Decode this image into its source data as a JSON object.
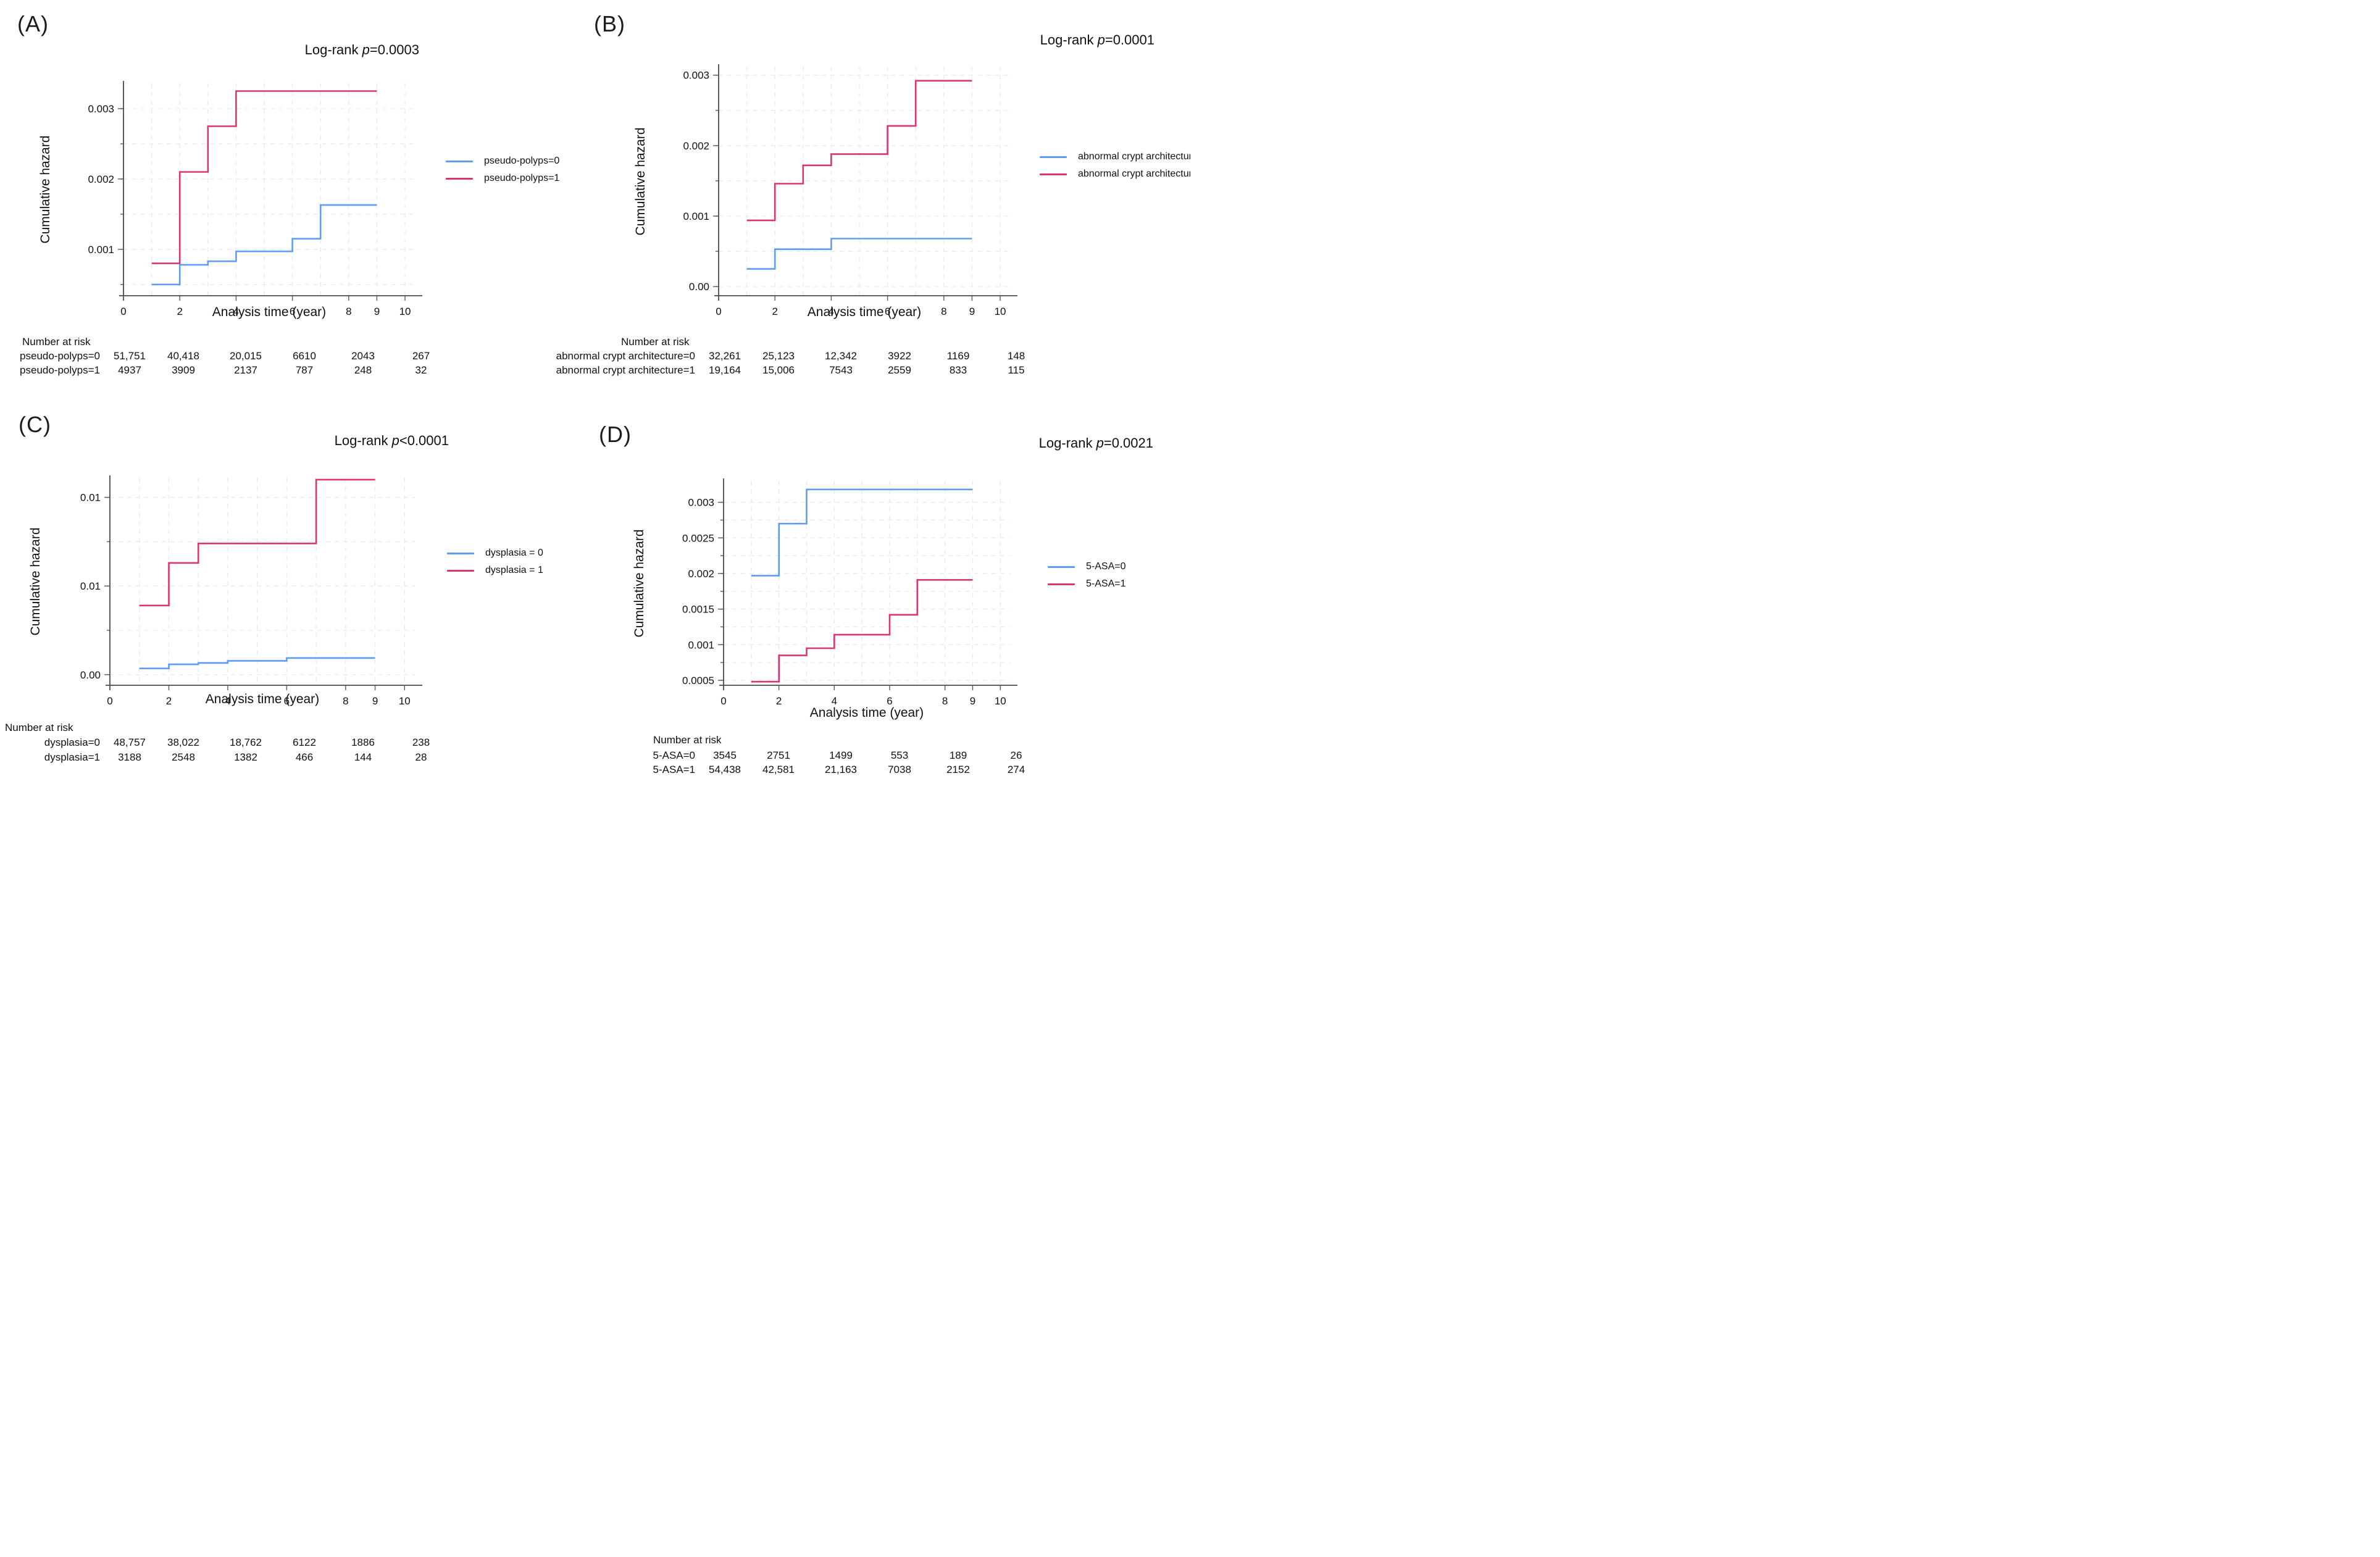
{
  "colors": {
    "blue": "#5f9df3",
    "red": "#dd3370",
    "grid": "#e9e9e9",
    "axis": "#4a4a4a",
    "text": "#101010"
  },
  "chart_data": [
    {
      "type": "line",
      "panel_letter": "(A)",
      "title": {
        "prefix": "Log-rank ",
        "p_symbol": "p",
        "comparison": "=0.0003"
      },
      "xlabel": "Analysis time (year)",
      "ylabel": "Cumulative hazard",
      "xlim": [
        0,
        10.35
      ],
      "ylim": [
        0.00034,
        0.00336
      ],
      "xticks": [
        {
          "v": 0,
          "label": "0"
        },
        {
          "v": 2,
          "label": "2"
        },
        {
          "v": 4,
          "label": "4"
        },
        {
          "v": 6,
          "label": "6"
        },
        {
          "v": 8,
          "label": "8"
        },
        {
          "v": 9,
          "label": "9"
        },
        {
          "v": 10,
          "label": "10"
        }
      ],
      "xgrid": [
        1,
        2,
        3,
        4,
        5,
        6,
        7,
        8,
        9,
        10
      ],
      "yticks": [
        {
          "v": 0.001,
          "label": "0.001"
        },
        {
          "v": 0.002,
          "label": "0.002"
        },
        {
          "v": 0.003,
          "label": "0.003"
        }
      ],
      "ygrid": [
        0.0005,
        0.001,
        0.0015,
        0.002,
        0.0025,
        0.003
      ],
      "series": [
        {
          "name": "pseudo-polyps=0",
          "color_key": "blue",
          "steps": [
            [
              1,
              0.0005
            ],
            [
              2,
              0.00078
            ],
            [
              3,
              0.00083
            ],
            [
              4,
              0.00097
            ],
            [
              6,
              0.00115
            ],
            [
              7,
              0.00163
            ]
          ],
          "end_x": 9
        },
        {
          "name": "pseudo-polyps=1",
          "color_key": "red",
          "steps": [
            [
              1,
              0.0008
            ],
            [
              2,
              0.0021
            ],
            [
              3,
              0.00275
            ],
            [
              4,
              0.00325
            ]
          ],
          "end_x": 9
        }
      ],
      "legend_position": "right",
      "risk_table": {
        "header": "Number at risk",
        "rows": [
          {
            "label": "pseudo-polyps=0",
            "values": [
              "51,751",
              "40,418",
              "20,015",
              "6610",
              "2043",
              "267"
            ]
          },
          {
            "label": "pseudo-polyps=1",
            "values": [
              "4937",
              "3909",
              "2137",
              "787",
              "248",
              "32"
            ]
          }
        ]
      }
    },
    {
      "type": "line",
      "panel_letter": "(B)",
      "title": {
        "prefix": "Log-rank ",
        "p_symbol": "p",
        "comparison": "=0.0001"
      },
      "xlabel": "Analysis time (year)",
      "ylabel": "Cumulative hazard",
      "xlim": [
        0,
        10.35
      ],
      "ylim": [
        -0.00013,
        0.00312
      ],
      "xticks": [
        {
          "v": 0,
          "label": "0"
        },
        {
          "v": 2,
          "label": "2"
        },
        {
          "v": 4,
          "label": "4"
        },
        {
          "v": 6,
          "label": "6"
        },
        {
          "v": 8,
          "label": "8"
        },
        {
          "v": 9,
          "label": "9"
        },
        {
          "v": 10,
          "label": "10"
        }
      ],
      "xgrid": [
        1,
        2,
        3,
        4,
        5,
        6,
        7,
        8,
        9,
        10
      ],
      "yticks": [
        {
          "v": 0,
          "label": "0.00"
        },
        {
          "v": 0.001,
          "label": "0.001"
        },
        {
          "v": 0.002,
          "label": "0.002"
        },
        {
          "v": 0.003,
          "label": "0.003"
        }
      ],
      "ygrid": [
        0,
        0.0005,
        0.001,
        0.0015,
        0.002,
        0.0025,
        0.003
      ],
      "series": [
        {
          "name": "abnormal crypt architecture=0",
          "color_key": "blue",
          "steps": [
            [
              1,
              0.00025
            ],
            [
              2,
              0.00053
            ],
            [
              4,
              0.00068
            ]
          ],
          "end_x": 9
        },
        {
          "name": "abnormal crypt architecture=1",
          "color_key": "red",
          "steps": [
            [
              1,
              0.00094
            ],
            [
              2,
              0.00146
            ],
            [
              3,
              0.00172
            ],
            [
              4,
              0.00188
            ],
            [
              6,
              0.00228
            ],
            [
              7,
              0.00292
            ]
          ],
          "end_x": 9
        }
      ],
      "legend_position": "right",
      "risk_table": {
        "header": "Number at risk",
        "rows": [
          {
            "label": "abnormal crypt architecture=0",
            "values": [
              "32,261",
              "25,123",
              "12,342",
              "3922",
              "1169",
              "148"
            ]
          },
          {
            "label": "abnormal crypt architecture=1",
            "values": [
              "19,164",
              "15,006",
              "7543",
              "2559",
              "833",
              "115"
            ]
          }
        ]
      }
    },
    {
      "type": "line",
      "panel_letter": "(C)",
      "title": {
        "prefix": "Log-rank ",
        "p_symbol": "p",
        "comparison": "<0.0001"
      },
      "xlabel": "Analysis time (year)",
      "ylabel": "Cumulative hazard",
      "xlim": [
        0,
        10.35
      ],
      "ylim": [
        -0.0006,
        0.0111
      ],
      "xticks": [
        {
          "v": 0,
          "label": "0"
        },
        {
          "v": 2,
          "label": "2"
        },
        {
          "v": 4,
          "label": "4"
        },
        {
          "v": 6,
          "label": "6"
        },
        {
          "v": 8,
          "label": "8"
        },
        {
          "v": 9,
          "label": "9"
        },
        {
          "v": 10,
          "label": "10"
        }
      ],
      "xgrid": [
        1,
        2,
        3,
        4,
        5,
        6,
        7,
        8,
        9,
        10
      ],
      "yticks": [
        {
          "v": 0,
          "label": "0.00"
        },
        {
          "v": 0.005,
          "label": "0.01"
        },
        {
          "v": 0.01,
          "label": "0.01"
        }
      ],
      "ygrid": [
        0,
        0.0025,
        0.005,
        0.0075,
        0.01
      ],
      "series": [
        {
          "name": "dysplasia = 0",
          "color_key": "blue",
          "steps": [
            [
              1,
              0.00035
            ],
            [
              2,
              0.00058
            ],
            [
              3,
              0.00066
            ],
            [
              4,
              0.00078
            ],
            [
              6,
              0.00094
            ]
          ],
          "end_x": 9
        },
        {
          "name": "dysplasia = 1",
          "color_key": "red",
          "steps": [
            [
              1,
              0.0039
            ],
            [
              2,
              0.0063
            ],
            [
              3,
              0.0074
            ],
            [
              7,
              0.011
            ]
          ],
          "end_x": 9
        }
      ],
      "legend_position": "right",
      "risk_table": {
        "header": "Number at risk",
        "rows": [
          {
            "label": "dysplasia=0",
            "values": [
              "48,757",
              "38,022",
              "18,762",
              "6122",
              "1886",
              "238"
            ]
          },
          {
            "label": "dysplasia=1",
            "values": [
              "3188",
              "2548",
              "1382",
              "466",
              "144",
              "28"
            ]
          }
        ]
      }
    },
    {
      "type": "line",
      "panel_letter": "(D)",
      "title": {
        "prefix": "Log-rank ",
        "p_symbol": "p",
        "comparison": "=0.0021"
      },
      "xlabel": "Analysis time (year)",
      "ylabel": "Cumulative hazard",
      "xlim": [
        0,
        10.35
      ],
      "ylim": [
        0.00043,
        0.0033
      ],
      "xticks": [
        {
          "v": 0,
          "label": "0"
        },
        {
          "v": 2,
          "label": "2"
        },
        {
          "v": 4,
          "label": "4"
        },
        {
          "v": 6,
          "label": "6"
        },
        {
          "v": 8,
          "label": "8"
        },
        {
          "v": 9,
          "label": "9"
        },
        {
          "v": 10,
          "label": "10"
        }
      ],
      "xgrid": [
        1,
        2,
        3,
        4,
        5,
        6,
        7,
        8,
        9,
        10
      ],
      "yticks": [
        {
          "v": 0.0005,
          "label": "0.0005"
        },
        {
          "v": 0.001,
          "label": "0.001"
        },
        {
          "v": 0.0015,
          "label": "0.0015"
        },
        {
          "v": 0.002,
          "label": "0.002"
        },
        {
          "v": 0.0025,
          "label": "0.0025"
        },
        {
          "v": 0.003,
          "label": "0.003"
        }
      ],
      "ygrid": [
        0.0005,
        0.00075,
        0.001,
        0.00125,
        0.0015,
        0.00175,
        0.002,
        0.00225,
        0.0025,
        0.00275,
        0.003
      ],
      "series": [
        {
          "name": "5-ASA=0",
          "color_key": "blue",
          "steps": [
            [
              1,
              0.00197
            ],
            [
              2,
              0.0027
            ],
            [
              3,
              0.00318
            ]
          ],
          "end_x": 9
        },
        {
          "name": "5-ASA=1",
          "color_key": "red",
          "steps": [
            [
              1,
              0.00048
            ],
            [
              2,
              0.00085
            ],
            [
              3,
              0.00095
            ],
            [
              4,
              0.00114
            ],
            [
              6,
              0.00142
            ],
            [
              7,
              0.00191
            ]
          ],
          "end_x": 9
        }
      ],
      "legend_position": "right",
      "risk_table": {
        "header": "Number at risk",
        "rows": [
          {
            "label": "5-ASA=0",
            "values": [
              "3545",
              "2751",
              "1499",
              "553",
              "189",
              "26"
            ]
          },
          {
            "label": "5-ASA=1",
            "values": [
              "54,438",
              "42,581",
              "21,163",
              "7038",
              "2152",
              "274"
            ]
          }
        ]
      }
    }
  ]
}
